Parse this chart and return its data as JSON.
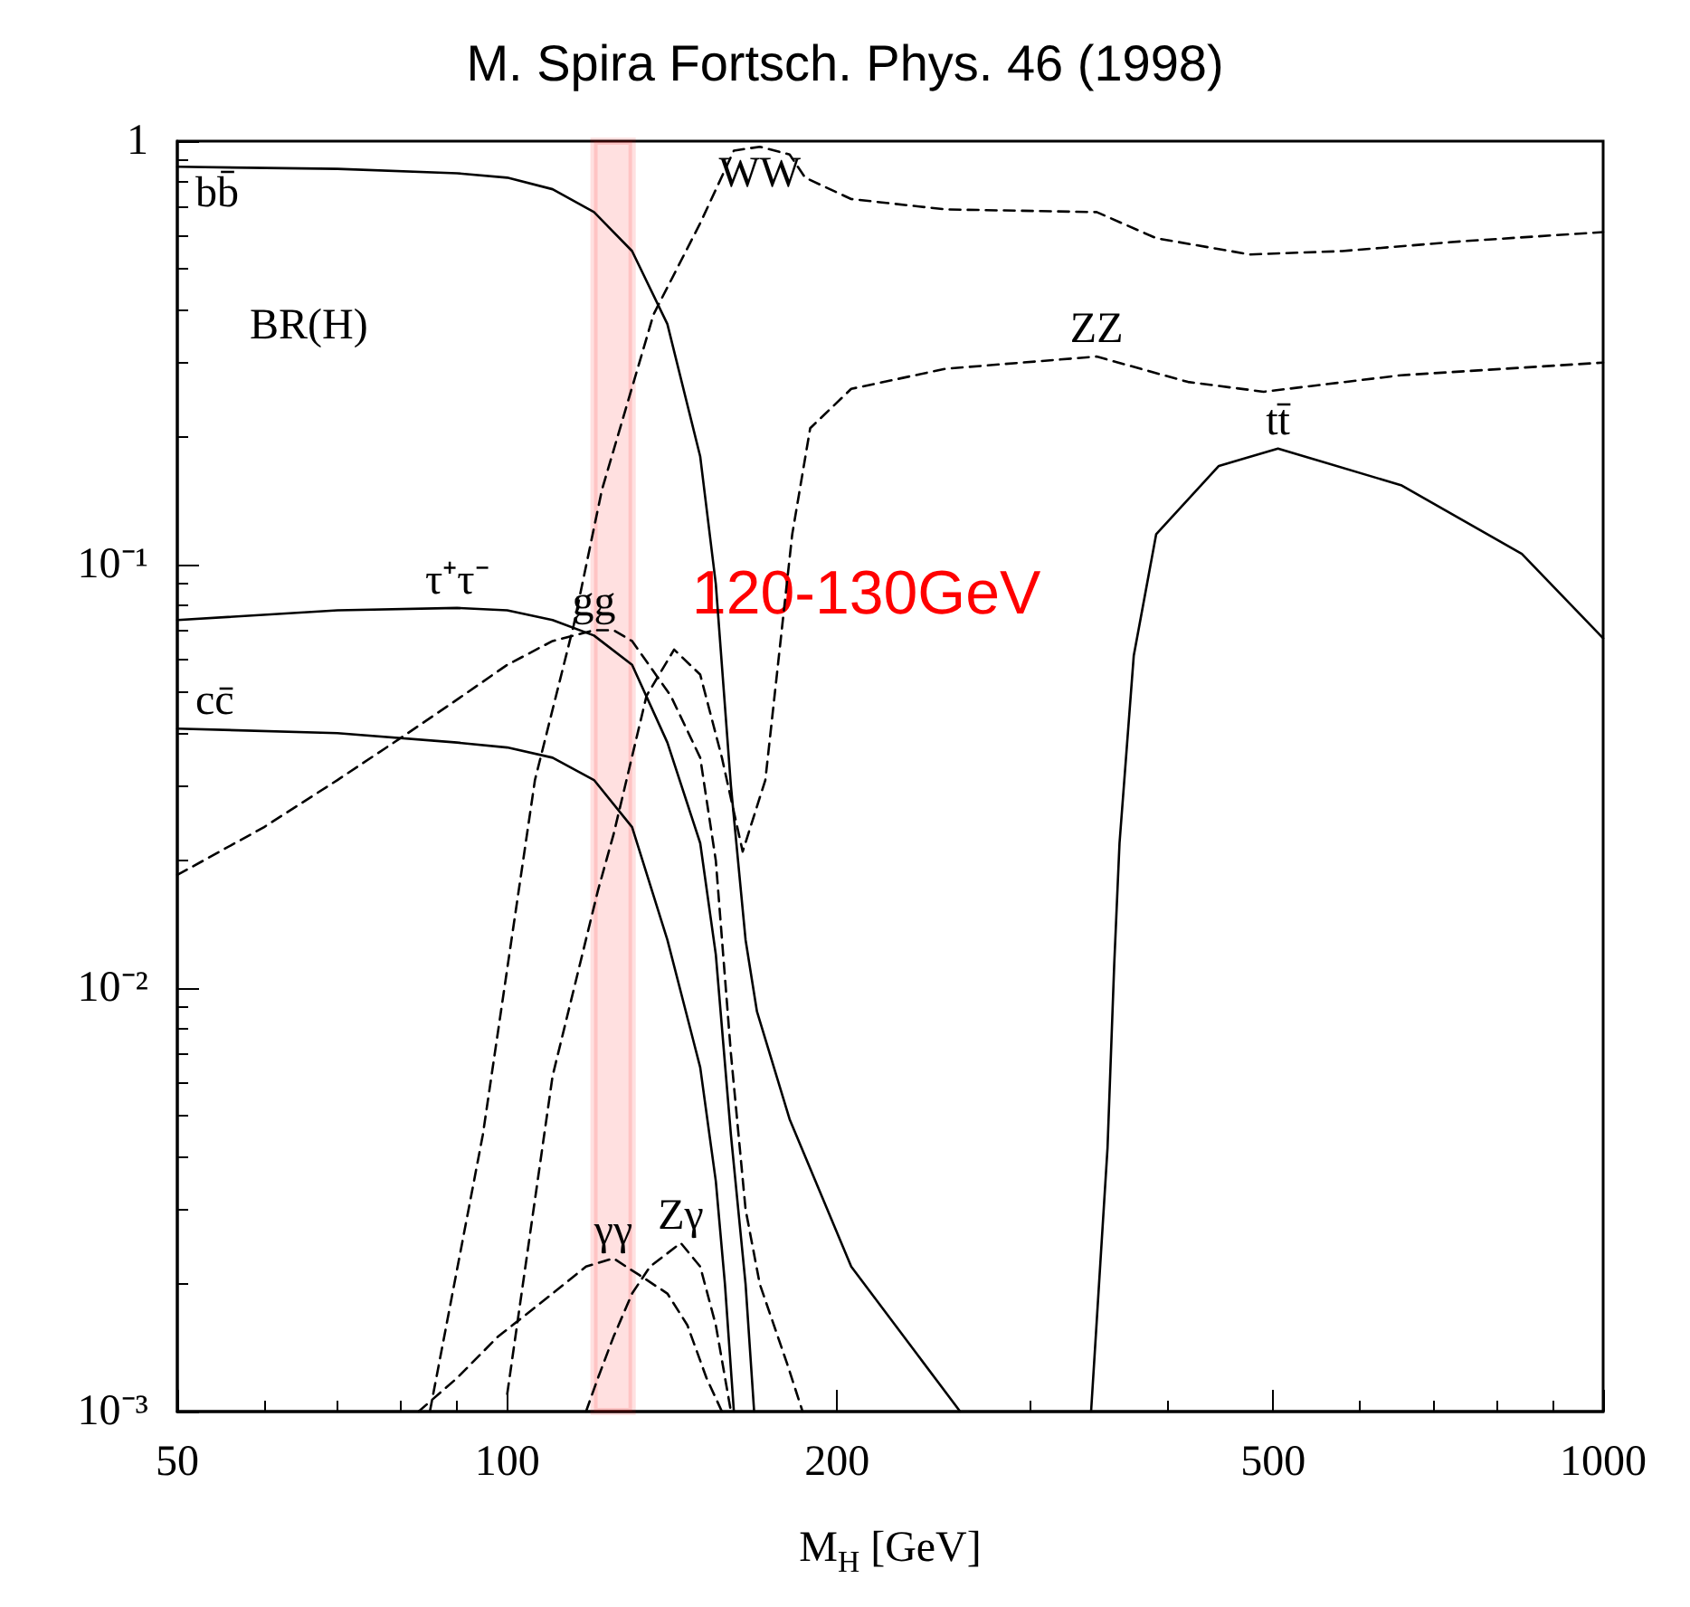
{
  "chart_data": {
    "type": "line",
    "title": "M. Spira Fortsch. Phys. 46 (1998)",
    "xlabel": "M$_{H}$ [GeV]",
    "annotations": [
      "BR(H)"
    ],
    "log": "xy",
    "grid": false,
    "legend": false,
    "marker": "none",
    "xlim": [
      50,
      1000
    ],
    "ylim": [
      0.001,
      1
    ],
    "xticks": [
      50,
      100,
      200,
      500,
      1000
    ],
    "yticks": [
      1,
      {
        "value": 0.1,
        "label": "10⁻¹"
      },
      {
        "value": 0.01,
        "label": "10⁻²"
      },
      {
        "value": 0.001,
        "label": "10⁻³"
      }
    ],
    "bands": [
      {
        "axis": "x",
        "from": 120,
        "to": 130,
        "label": "120-130GeV",
        "color": "#ff0000"
      }
    ],
    "series": [
      {
        "name": "bb̄",
        "color": "#000000",
        "line_style": "solid",
        "x": [
          50,
          70,
          90,
          100,
          110,
          120,
          130,
          140,
          150,
          155,
          160,
          165,
          169,
          181,
          206,
          259
        ],
        "values": [
          0.87,
          0.86,
          0.84,
          0.82,
          0.77,
          0.68,
          0.55,
          0.37,
          0.18,
          0.09,
          0.03,
          0.013,
          0.0088,
          0.0049,
          0.0022,
          0.001
        ]
      },
      {
        "name": "τ⁺τ⁻",
        "color": "#000000",
        "line_style": "solid",
        "x": [
          50,
          70,
          90,
          100,
          110,
          120,
          130,
          140,
          150,
          155,
          160,
          165,
          168
        ],
        "values": [
          0.074,
          0.078,
          0.079,
          0.078,
          0.074,
          0.068,
          0.058,
          0.038,
          0.022,
          0.012,
          0.0045,
          0.002,
          0.001
        ]
      },
      {
        "name": "cc̄",
        "color": "#000000",
        "line_style": "solid",
        "x": [
          50,
          70,
          90,
          100,
          110,
          120,
          130,
          140,
          150,
          155,
          158,
          161
        ],
        "values": [
          0.041,
          0.04,
          0.038,
          0.037,
          0.035,
          0.031,
          0.024,
          0.013,
          0.0065,
          0.0035,
          0.002,
          0.001
        ]
      },
      {
        "name": "gg",
        "color": "#000000",
        "line_style": "dashed",
        "x": [
          50,
          60,
          70,
          80,
          90,
          100,
          110,
          120,
          125,
          130,
          141,
          150,
          155,
          160,
          165,
          170,
          180,
          186
        ],
        "values": [
          0.0185,
          0.024,
          0.031,
          0.039,
          0.048,
          0.058,
          0.066,
          0.07,
          0.07,
          0.066,
          0.049,
          0.035,
          0.02,
          0.007,
          0.003,
          0.002,
          0.0013,
          0.001
        ]
      },
      {
        "name": "γγ",
        "color": "#000000",
        "line_style": "dashed",
        "x": [
          83,
          90,
          98,
          110,
          118,
          125,
          132,
          140,
          146,
          152,
          157
        ],
        "values": [
          0.001,
          0.0012,
          0.0015,
          0.0019,
          0.0022,
          0.0023,
          0.0021,
          0.0019,
          0.0016,
          0.0012,
          0.001
        ]
      },
      {
        "name": "Zγ",
        "color": "#000000",
        "line_style": "dashed",
        "x": [
          118,
          121,
          125,
          130,
          135,
          144,
          150,
          155,
          160
        ],
        "values": [
          0.001,
          0.0012,
          0.0015,
          0.0019,
          0.0022,
          0.0025,
          0.0022,
          0.0016,
          0.001
        ]
      },
      {
        "name": "WW",
        "color": "#000000",
        "line_style": "dashed",
        "x": [
          85,
          95,
          106,
          115,
          122,
          136,
          150,
          161,
          170,
          181,
          187,
          206,
          251,
          345,
          391,
          476,
          578,
          742,
          1000
        ],
        "values": [
          0.001,
          0.0045,
          0.031,
          0.072,
          0.15,
          0.39,
          0.64,
          0.95,
          0.97,
          0.93,
          0.82,
          0.73,
          0.69,
          0.68,
          0.59,
          0.54,
          0.55,
          0.58,
          0.61
        ]
      },
      {
        "name": "ZZ",
        "color": "#000000",
        "line_style": "dashed",
        "x": [
          100,
          110,
          121,
          125,
          134,
          142,
          150,
          157,
          164,
          172,
          182,
          189,
          206,
          251,
          345,
          418,
          490,
          654,
          1000
        ],
        "values": [
          0.0011,
          0.0062,
          0.017,
          0.023,
          0.049,
          0.063,
          0.055,
          0.035,
          0.021,
          0.031,
          0.118,
          0.21,
          0.26,
          0.29,
          0.31,
          0.27,
          0.256,
          0.28,
          0.3
        ]
      },
      {
        "name": "tt̄",
        "color": "#000000",
        "line_style": "solid",
        "x": [
          341,
          353,
          358,
          362,
          373,
          391,
          446,
          505,
          654,
          843,
          1000
        ],
        "values": [
          0.001,
          0.0042,
          0.0114,
          0.022,
          0.061,
          0.118,
          0.171,
          0.188,
          0.154,
          0.106,
          0.067
        ]
      }
    ]
  }
}
